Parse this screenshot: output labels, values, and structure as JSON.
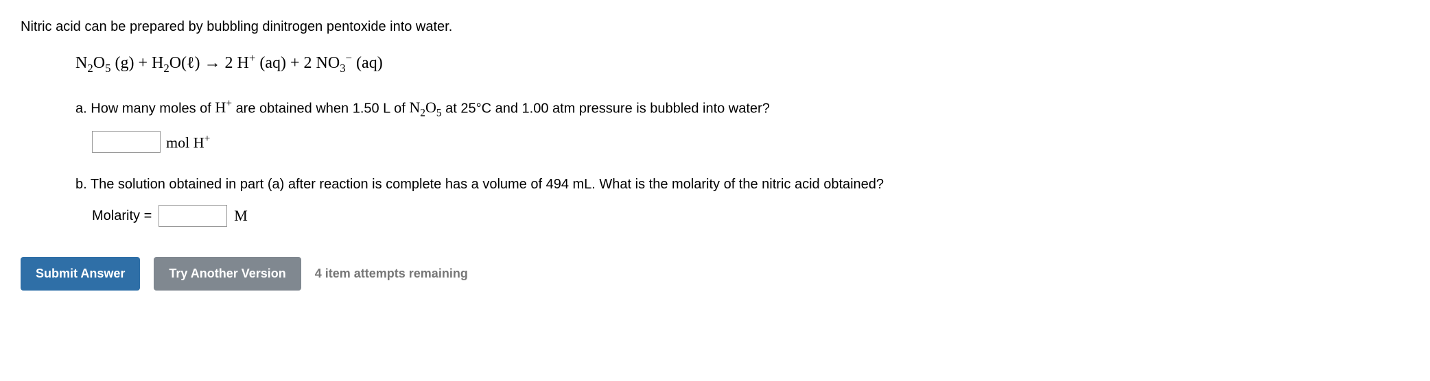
{
  "intro": "Nitric acid can be prepared by bubbling dinitrogen pentoxide into water.",
  "equation_html": "N<sub>2</sub>O<sub>5</sub> (g) + H<sub>2</sub>O(ℓ) → 2 H<sup>+</sup> (aq) + 2 NO<sub>3</sub><sup>−</sup> (aq)",
  "part_a": {
    "label": "a.",
    "q_before": "How many moles of ",
    "q_species_html": "H<sup>+</sup>",
    "q_mid": " are obtained when 1.50 L of ",
    "q_compound_html": "N<sub>2</sub>O<sub>5</sub>",
    "q_after": " at 25°C and 1.00 atm pressure is bubbled into water?",
    "unit_html": "mol H<sup>+</sup>"
  },
  "part_b": {
    "label": "b.",
    "q": "The solution obtained in part (a) after reaction is complete has a volume of 494 mL. What is the molarity of the nitric acid obtained?",
    "prefix": "Molarity =",
    "unit": "M"
  },
  "buttons": {
    "submit": "Submit Answer",
    "try_another": "Try Another Version",
    "attempts": "4 item attempts remaining"
  },
  "colors": {
    "primary": "#2f6fa7",
    "secondary": "#808890",
    "muted_text": "#777777",
    "border": "#999999",
    "bg": "#ffffff"
  }
}
